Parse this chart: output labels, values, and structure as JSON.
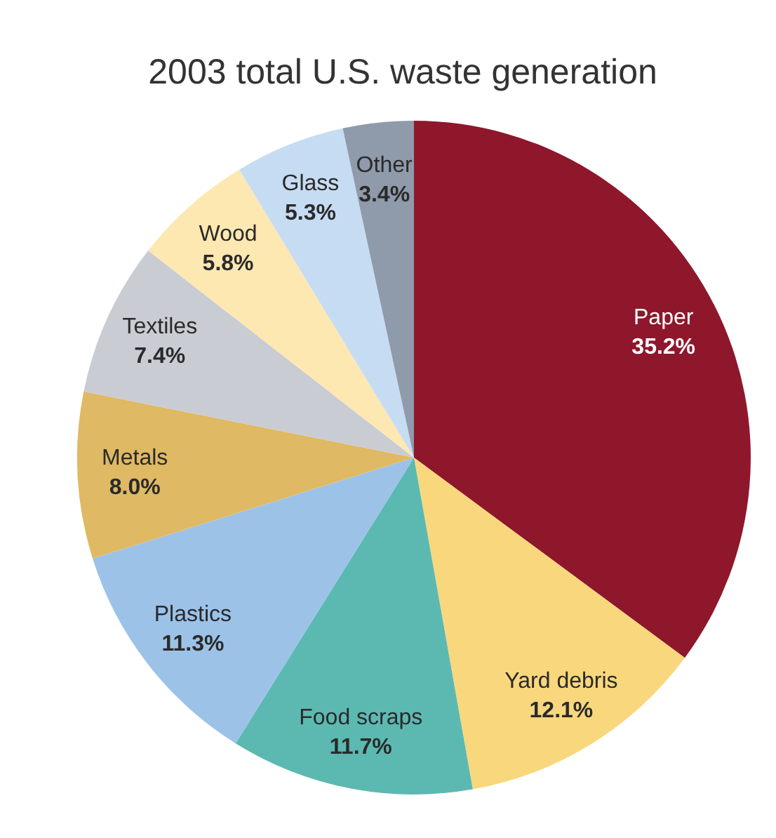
{
  "chart_data": {
    "type": "pie",
    "title": "2003 total U.S. waste generation",
    "categories": [
      "Paper",
      "Yard debris",
      "Food scraps",
      "Plastics",
      "Metals",
      "Textiles",
      "Wood",
      "Glass",
      "Other"
    ],
    "values": [
      35.2,
      12.1,
      11.7,
      11.3,
      8.0,
      7.4,
      5.8,
      5.3,
      3.4
    ],
    "value_labels": [
      "35.2%",
      "12.1%",
      "11.7%",
      "11.3%",
      "8.0%",
      "7.4%",
      "5.8%",
      "5.3%",
      "3.4%"
    ],
    "colors": [
      "#8e172c",
      "#f9d77c",
      "#5cb9b2",
      "#9cc2e8",
      "#dfb963",
      "#c9ccd3",
      "#fde8b2",
      "#c6dcf2",
      "#8f9aab"
    ]
  }
}
